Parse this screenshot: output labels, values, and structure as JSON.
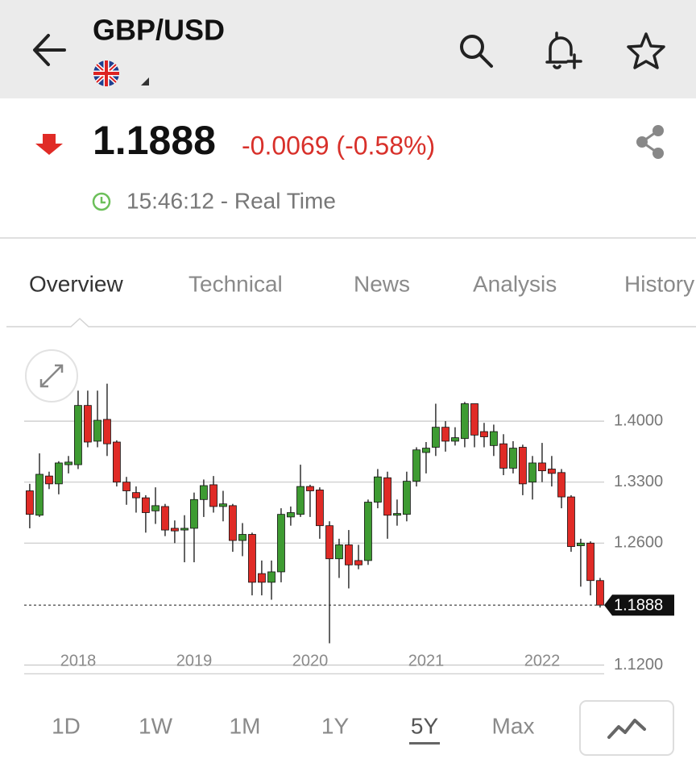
{
  "header": {
    "title": "GBP/USD"
  },
  "quote": {
    "price": "1.1888",
    "change": "-0.0069 (-0.58%)",
    "time": "15:46:12 - Real Time"
  },
  "tabs": {
    "items": [
      "Overview",
      "Technical",
      "News",
      "Analysis",
      "History"
    ],
    "selected": 0
  },
  "ranges": {
    "items": [
      "1D",
      "1W",
      "1M",
      "1Y",
      "5Y",
      "Max"
    ],
    "selected": 4
  },
  "chart_data": {
    "type": "candlestick",
    "x": [
      2017.583,
      2017.667,
      2017.75,
      2017.833,
      2017.917,
      2018,
      2018.083,
      2018.167,
      2018.25,
      2018.333,
      2018.417,
      2018.5,
      2018.583,
      2018.667,
      2018.75,
      2018.833,
      2018.917,
      2019,
      2019.083,
      2019.167,
      2019.25,
      2019.333,
      2019.417,
      2019.5,
      2019.583,
      2019.667,
      2019.75,
      2019.833,
      2019.917,
      2020,
      2020.083,
      2020.167,
      2020.25,
      2020.333,
      2020.417,
      2020.5,
      2020.583,
      2020.667,
      2020.75,
      2020.833,
      2020.917,
      2021,
      2021.083,
      2021.167,
      2021.25,
      2021.333,
      2021.417,
      2021.5,
      2021.583,
      2021.667,
      2021.75,
      2021.833,
      2021.917,
      2022,
      2022.083,
      2022.167,
      2022.25,
      2022.333,
      2022.417,
      2022.5
    ],
    "open": [
      1.32,
      1.292,
      1.337,
      1.328,
      1.35,
      1.35,
      1.418,
      1.377,
      1.402,
      1.376,
      1.33,
      1.318,
      1.312,
      1.297,
      1.302,
      1.277,
      1.275,
      1.277,
      1.31,
      1.327,
      1.302,
      1.303,
      1.263,
      1.27,
      1.225,
      1.215,
      1.227,
      1.29,
      1.293,
      1.325,
      1.321,
      1.28,
      1.242,
      1.258,
      1.24,
      1.24,
      1.307,
      1.335,
      1.292,
      1.293,
      1.331,
      1.364,
      1.37,
      1.393,
      1.377,
      1.38,
      1.42,
      1.388,
      1.372,
      1.374,
      1.346,
      1.37,
      1.33,
      1.352,
      1.345,
      1.341,
      1.313,
      1.257,
      1.26,
      1.217
    ],
    "high": [
      1.328,
      1.363,
      1.342,
      1.354,
      1.36,
      1.435,
      1.435,
      1.435,
      1.443,
      1.378,
      1.336,
      1.325,
      1.315,
      1.324,
      1.305,
      1.286,
      1.292,
      1.318,
      1.333,
      1.337,
      1.32,
      1.305,
      1.283,
      1.272,
      1.24,
      1.24,
      1.3,
      1.302,
      1.35,
      1.327,
      1.324,
      1.285,
      1.265,
      1.275,
      1.258,
      1.31,
      1.345,
      1.342,
      1.31,
      1.342,
      1.37,
      1.376,
      1.42,
      1.4,
      1.393,
      1.422,
      1.42,
      1.398,
      1.396,
      1.385,
      1.377,
      1.373,
      1.36,
      1.375,
      1.36,
      1.345,
      1.315,
      1.265,
      1.262,
      1.22
    ],
    "low": [
      1.277,
      1.29,
      1.322,
      1.316,
      1.34,
      1.345,
      1.37,
      1.37,
      1.36,
      1.325,
      1.304,
      1.295,
      1.272,
      1.282,
      1.268,
      1.26,
      1.238,
      1.238,
      1.29,
      1.295,
      1.285,
      1.25,
      1.245,
      1.2,
      1.2,
      1.195,
      1.215,
      1.28,
      1.29,
      1.29,
      1.265,
      1.145,
      1.22,
      1.208,
      1.23,
      1.235,
      1.3,
      1.265,
      1.28,
      1.285,
      1.325,
      1.34,
      1.36,
      1.365,
      1.372,
      1.37,
      1.37,
      1.37,
      1.36,
      1.338,
      1.34,
      1.315,
      1.31,
      1.33,
      1.325,
      1.3,
      1.25,
      1.21,
      1.2,
      1.186
    ],
    "close": [
      1.293,
      1.339,
      1.328,
      1.352,
      1.353,
      1.418,
      1.376,
      1.401,
      1.374,
      1.33,
      1.32,
      1.312,
      1.295,
      1.303,
      1.275,
      1.274,
      1.277,
      1.31,
      1.326,
      1.302,
      1.305,
      1.263,
      1.27,
      1.215,
      1.215,
      1.227,
      1.293,
      1.295,
      1.325,
      1.32,
      1.28,
      1.242,
      1.258,
      1.235,
      1.235,
      1.307,
      1.336,
      1.292,
      1.294,
      1.331,
      1.367,
      1.369,
      1.393,
      1.377,
      1.381,
      1.42,
      1.384,
      1.382,
      1.388,
      1.346,
      1.369,
      1.328,
      1.352,
      1.343,
      1.34,
      1.313,
      1.256,
      1.26,
      1.217,
      1.1888
    ],
    "up_color": "#3e9b32",
    "down_color": "#e02b26",
    "current": {
      "value": 1.1888,
      "label": "1.1888"
    },
    "xlim": [
      2017.535,
      2022.535
    ],
    "xticks": [
      2018,
      2019,
      2020,
      2021,
      2022
    ],
    "ylim": [
      1.11,
      1.445
    ],
    "yticks": [
      {
        "value": 1.12,
        "label": "1.1200"
      },
      {
        "value": 1.26,
        "label": "1.2600"
      },
      {
        "value": 1.33,
        "label": "1.3300"
      },
      {
        "value": 1.4,
        "label": "1.4000"
      }
    ],
    "grid": true
  }
}
